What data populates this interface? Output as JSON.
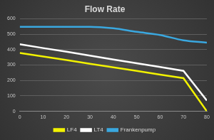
{
  "chart_data": {
    "type": "line",
    "title": "Flow Rate",
    "x": [
      0,
      10,
      20,
      30,
      40,
      50,
      60,
      70,
      80
    ],
    "series": [
      {
        "name": "LF4",
        "color": "#f2f200",
        "line_style": "solid",
        "values": [
          378,
          355,
          332,
          308,
          285,
          262,
          238,
          215,
          0
        ]
      },
      {
        "name": "LT4",
        "color": "#ffffff",
        "line_style": "solid",
        "values": [
          435,
          410,
          386,
          361,
          336,
          312,
          287,
          262,
          70
        ]
      },
      {
        "name": "Frankenpump",
        "color": "#3aa8e0",
        "line_style": "smooth",
        "values": [
          548,
          548,
          548,
          548,
          538,
          515,
          495,
          460,
          445
        ]
      }
    ],
    "xlim": [
      0,
      80
    ],
    "xticks": [
      0,
      10,
      20,
      30,
      40,
      50,
      60,
      70,
      80
    ],
    "ylim": [
      0,
      600
    ],
    "yticks": [
      0,
      100,
      200,
      300,
      400,
      500,
      600
    ],
    "grid": true,
    "legend": "bottom",
    "marker": "none"
  }
}
